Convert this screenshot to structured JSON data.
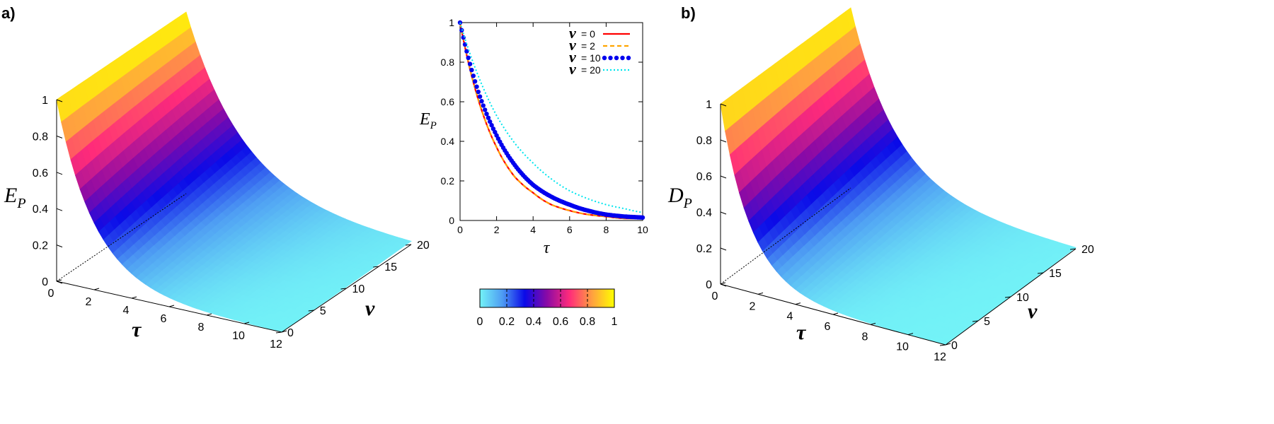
{
  "colors": {
    "v0": "#ff0000",
    "v2": "#ffa500",
    "v10": "#0000ee",
    "v20": "#00e5ee",
    "palette": [
      "#73f3f7",
      "#4e9cf3",
      "#0a0ae8",
      "#8b0aa5",
      "#ff2b7a",
      "#ffa040",
      "#ffff00"
    ]
  },
  "chart_data": [
    {
      "type": "surface",
      "panel_label": "a)",
      "zlabel_main": "E",
      "zlabel_sub": "P",
      "xlabel": "τ",
      "ylabel": "ν",
      "x_ticks": [
        "0",
        "2",
        "4",
        "6",
        "8",
        "10",
        "12"
      ],
      "y_ticks": [
        "0",
        "5",
        "10",
        "15",
        "20"
      ],
      "z_ticks": [
        "0",
        "0.2",
        "0.4",
        "0.6",
        "0.8",
        "1"
      ],
      "x_range": [
        0,
        12
      ],
      "y_range": [
        0,
        20
      ],
      "z_range": [
        0,
        1
      ],
      "function": "exp(-tau/(2+0.05*nu))"
    },
    {
      "type": "line",
      "title": "",
      "xlabel": "τ",
      "ylabel_main": "E",
      "ylabel_sub": "P",
      "xlim": [
        0,
        10
      ],
      "ylim": [
        0,
        1
      ],
      "x_ticks": [
        "0",
        "2",
        "4",
        "6",
        "8",
        "10"
      ],
      "y_ticks": [
        "0",
        "0.2",
        "0.4",
        "0.6",
        "0.8",
        "1"
      ],
      "legend_position": "top-right",
      "series": [
        {
          "name": "ν = 0",
          "symbol": "ν",
          "label": "= 0",
          "style": "solid",
          "color_key": "v0",
          "x": [
            0,
            1,
            2,
            3,
            4,
            5,
            6,
            7,
            8,
            9,
            10
          ],
          "values": [
            1.0,
            0.61,
            0.37,
            0.22,
            0.14,
            0.08,
            0.05,
            0.03,
            0.02,
            0.01,
            0.01
          ]
        },
        {
          "name": "ν = 2",
          "symbol": "ν",
          "label": "= 2",
          "style": "dashed",
          "color_key": "v2",
          "x": [
            0,
            1,
            2,
            3,
            4,
            5,
            6,
            7,
            8,
            9,
            10
          ],
          "values": [
            1.0,
            0.61,
            0.37,
            0.22,
            0.14,
            0.08,
            0.05,
            0.03,
            0.02,
            0.01,
            0.01
          ]
        },
        {
          "name": "ν = 10",
          "symbol": "ν",
          "label": "= 10",
          "style": "dots",
          "color_key": "v10",
          "x": [
            0,
            1,
            2,
            3,
            4,
            5,
            6,
            7,
            8,
            9,
            10
          ],
          "values": [
            1.0,
            0.65,
            0.43,
            0.28,
            0.18,
            0.12,
            0.08,
            0.05,
            0.03,
            0.02,
            0.015
          ]
        },
        {
          "name": "ν = 20",
          "symbol": "ν",
          "label": "= 20",
          "style": "dotted",
          "color_key": "v20",
          "x": [
            0,
            1,
            2,
            3,
            4,
            5,
            6,
            7,
            8,
            9,
            10
          ],
          "values": [
            1.0,
            0.73,
            0.53,
            0.39,
            0.29,
            0.21,
            0.15,
            0.11,
            0.08,
            0.06,
            0.04
          ]
        }
      ]
    },
    {
      "type": "colorbar",
      "ticks": [
        "0",
        "0.2",
        "0.4",
        "0.6",
        "0.8",
        "1"
      ],
      "range": [
        0,
        1
      ]
    },
    {
      "type": "surface",
      "panel_label": "b)",
      "zlabel_main": "D",
      "zlabel_sub": "P",
      "xlabel": "τ",
      "ylabel": "ν",
      "x_ticks": [
        "0",
        "2",
        "4",
        "6",
        "8",
        "10",
        "12"
      ],
      "y_ticks": [
        "0",
        "5",
        "10",
        "15",
        "20"
      ],
      "z_ticks": [
        "0",
        "0.2",
        "0.4",
        "0.6",
        "0.8",
        "1"
      ],
      "x_range": [
        0,
        12
      ],
      "y_range": [
        0,
        20
      ],
      "z_range": [
        0,
        1
      ],
      "function": "exp(-tau/(1.6+0.04*nu))"
    }
  ]
}
